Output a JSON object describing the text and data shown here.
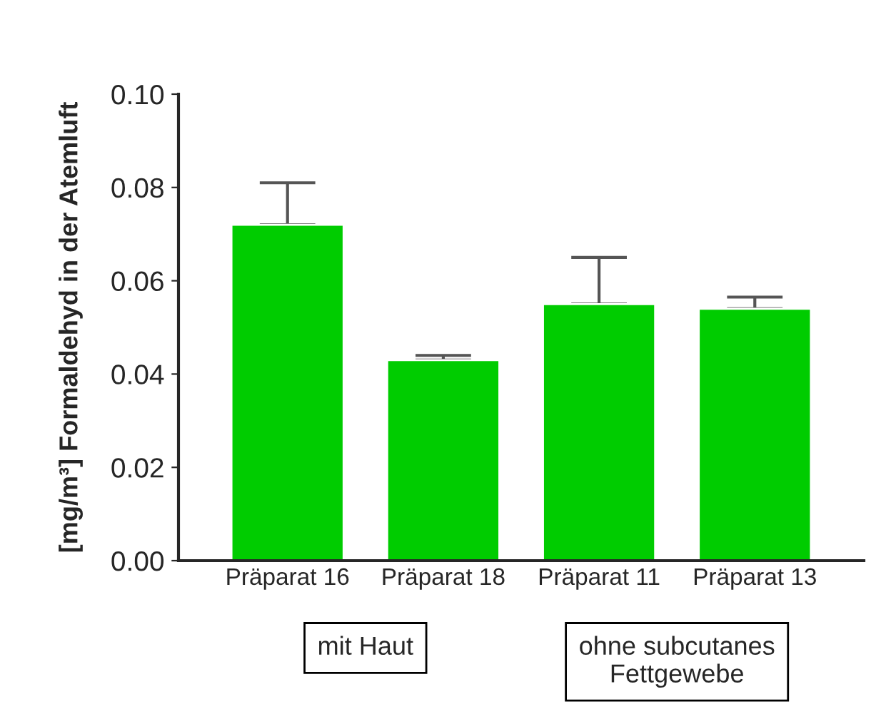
{
  "chart_data": {
    "type": "bar",
    "categories": [
      "Präparat 16",
      "Präparat 18",
      "Präparat 11",
      "Präparat 13"
    ],
    "values": [
      0.072,
      0.043,
      0.055,
      0.054
    ],
    "color": "#00cc00",
    "errors": [
      [
        0.072,
        0.081
      ],
      [
        0.043,
        0.044
      ],
      [
        0.055,
        0.065
      ],
      [
        0.054,
        0.0565
      ]
    ],
    "ylabel": "[mg/m³] Formaldehyd in der Atemluft",
    "ylim": [
      0,
      0.1
    ],
    "yticks": [
      {
        "value": 0,
        "label": "0.00"
      },
      {
        "value": 0.02,
        "label": "0.02"
      },
      {
        "value": 0.04,
        "label": "0.04"
      },
      {
        "value": 0.06,
        "label": "0.06"
      },
      {
        "value": 0.08,
        "label": "0.08"
      },
      {
        "value": 0.1,
        "label": "0.10"
      }
    ],
    "grid": false,
    "legend": false,
    "annotations": [
      "mit Haut",
      "ohne subcutanes\nFettgewebe"
    ]
  }
}
